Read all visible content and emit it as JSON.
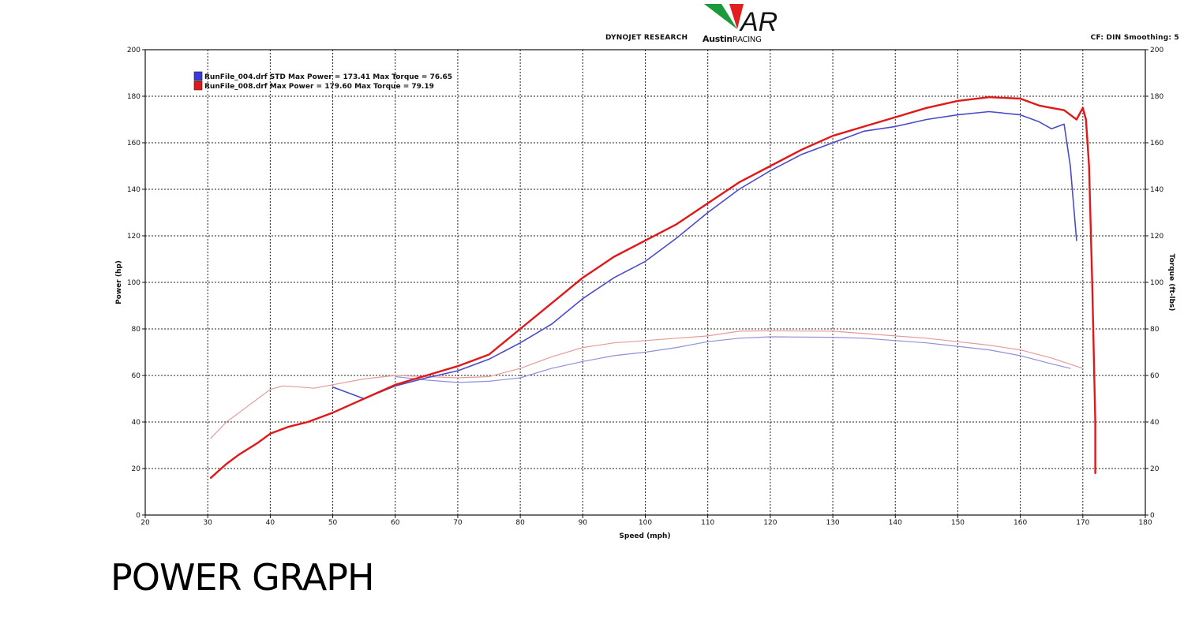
{
  "header": {
    "dyno": "DYNOJET RESEARCH",
    "settings": "CF: DIN  Smoothing: 5",
    "logo_brand": "Austin",
    "logo_suffix": "RACING",
    "logo_mark": "AR"
  },
  "caption": "POWER GRAPH",
  "colors": {
    "run4": "#4b4bc8",
    "run8": "#e01818",
    "run4_torque": "#8f8fdc",
    "run8_torque": "#e79a9a",
    "grid": "#222222",
    "logo_green": "#1a9a3a",
    "logo_red": "#e0201e"
  },
  "chart_data": {
    "type": "line",
    "xlabel": "Speed (mph)",
    "ylabel": "Power (hp)",
    "y2label": "Torque (ft-lbs)",
    "xlim": [
      20,
      180
    ],
    "ylim": [
      0,
      200
    ],
    "y2lim": [
      0,
      200
    ],
    "xticks": [
      20,
      30,
      40,
      50,
      60,
      70,
      80,
      90,
      100,
      110,
      120,
      130,
      140,
      150,
      160,
      170,
      180
    ],
    "yticks": [
      0,
      20,
      40,
      60,
      80,
      100,
      120,
      140,
      160,
      180,
      200
    ],
    "grid": true,
    "legend_position": "top-left",
    "legend": [
      {
        "name": "RunFile_004.drf STD Max Power = 173.41 Max Torque = 76.65",
        "color": "#3a3ad8"
      },
      {
        "name": "RunFile_008.drf Max Power = 179.60 Max Torque = 79.19",
        "color": "#e01818"
      }
    ],
    "series": [
      {
        "name": "RunFile_004.drf STD Max Power = 173.41 Max Torque = 76.65",
        "kind": "power",
        "axis": "left",
        "points": [
          [
            50,
            55
          ],
          [
            55,
            50
          ],
          [
            60,
            55.5
          ],
          [
            65,
            59
          ],
          [
            70,
            62
          ],
          [
            75,
            67
          ],
          [
            80,
            74
          ],
          [
            85,
            82
          ],
          [
            90,
            93
          ],
          [
            95,
            102
          ],
          [
            100,
            109
          ],
          [
            105,
            119
          ],
          [
            110,
            130
          ],
          [
            115,
            140
          ],
          [
            120,
            148
          ],
          [
            125,
            155
          ],
          [
            130,
            160
          ],
          [
            135,
            165
          ],
          [
            140,
            167
          ],
          [
            145,
            170
          ],
          [
            150,
            172
          ],
          [
            155,
            173.4
          ],
          [
            160,
            172
          ],
          [
            163,
            169
          ],
          [
            165,
            166
          ],
          [
            167,
            168
          ],
          [
            168,
            150
          ],
          [
            169,
            118
          ]
        ]
      },
      {
        "name": "RunFile_008.drf Max Power = 179.60 Max Torque = 79.19",
        "kind": "power",
        "axis": "left",
        "points": [
          [
            30.5,
            16
          ],
          [
            33,
            22
          ],
          [
            35,
            26
          ],
          [
            38,
            31
          ],
          [
            40,
            35
          ],
          [
            43,
            38
          ],
          [
            46,
            40
          ],
          [
            50,
            44
          ],
          [
            55,
            50
          ],
          [
            60,
            56
          ],
          [
            65,
            60
          ],
          [
            70,
            64
          ],
          [
            75,
            69
          ],
          [
            80,
            80
          ],
          [
            85,
            91
          ],
          [
            90,
            102
          ],
          [
            95,
            111
          ],
          [
            100,
            118
          ],
          [
            105,
            125
          ],
          [
            110,
            134
          ],
          [
            115,
            143
          ],
          [
            120,
            150
          ],
          [
            125,
            157
          ],
          [
            130,
            163
          ],
          [
            135,
            167
          ],
          [
            140,
            171
          ],
          [
            145,
            175
          ],
          [
            150,
            178
          ],
          [
            155,
            179.6
          ],
          [
            160,
            179
          ],
          [
            163,
            176
          ],
          [
            165,
            175
          ],
          [
            167,
            174
          ],
          [
            169,
            170
          ],
          [
            170,
            175
          ],
          [
            170.5,
            170
          ],
          [
            171,
            150
          ],
          [
            171.5,
            100
          ],
          [
            172,
            40
          ],
          [
            172,
            18
          ]
        ]
      },
      {
        "name": "RunFile_004.drf STD Max Power = 173.41 Max Torque = 76.65",
        "kind": "torque",
        "axis": "right",
        "points": [
          [
            60,
            59.5
          ],
          [
            65,
            58
          ],
          [
            70,
            57
          ],
          [
            75,
            57.5
          ],
          [
            80,
            59
          ],
          [
            85,
            63
          ],
          [
            90,
            66
          ],
          [
            95,
            68.5
          ],
          [
            100,
            70
          ],
          [
            105,
            72
          ],
          [
            110,
            74.5
          ],
          [
            115,
            76
          ],
          [
            120,
            76.6
          ],
          [
            125,
            76.5
          ],
          [
            130,
            76.4
          ],
          [
            135,
            76
          ],
          [
            140,
            75
          ],
          [
            145,
            74
          ],
          [
            150,
            72.5
          ],
          [
            155,
            71
          ],
          [
            160,
            68.5
          ],
          [
            165,
            65
          ],
          [
            168,
            63
          ]
        ]
      },
      {
        "name": "RunFile_008.drf Max Power = 179.60 Max Torque = 79.19",
        "kind": "torque",
        "axis": "right",
        "points": [
          [
            30.5,
            33
          ],
          [
            33,
            40
          ],
          [
            36,
            46
          ],
          [
            40,
            54
          ],
          [
            42,
            55.5
          ],
          [
            45,
            55
          ],
          [
            47,
            54.5
          ],
          [
            50,
            56
          ],
          [
            55,
            58.5
          ],
          [
            60,
            60
          ],
          [
            65,
            59.5
          ],
          [
            70,
            59
          ],
          [
            75,
            59.5
          ],
          [
            80,
            63
          ],
          [
            85,
            68
          ],
          [
            90,
            72
          ],
          [
            95,
            74
          ],
          [
            100,
            75
          ],
          [
            105,
            76
          ],
          [
            110,
            77
          ],
          [
            115,
            79
          ],
          [
            120,
            79.2
          ],
          [
            125,
            79.1
          ],
          [
            130,
            79
          ],
          [
            135,
            78
          ],
          [
            140,
            77
          ],
          [
            145,
            76
          ],
          [
            150,
            74.5
          ],
          [
            155,
            73
          ],
          [
            160,
            71
          ],
          [
            165,
            67.5
          ],
          [
            170,
            63
          ]
        ]
      }
    ]
  }
}
